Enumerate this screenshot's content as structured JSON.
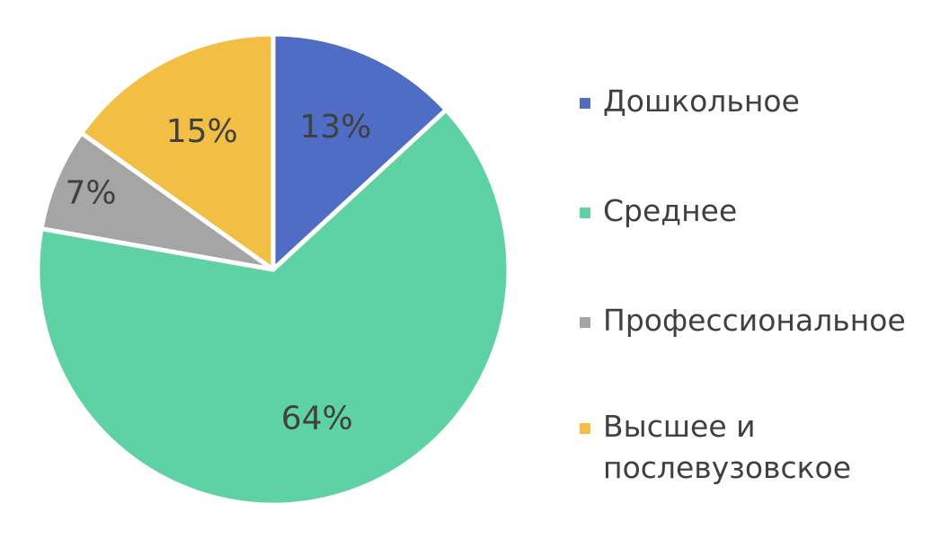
{
  "chart_data": {
    "type": "pie",
    "title": "",
    "legend_position": "right",
    "categories": [
      "Дошкольное",
      "Среднее",
      "Профессиональное",
      "Высшее и послевузовское"
    ],
    "values": [
      13,
      64,
      7,
      15
    ],
    "data_labels": [
      "13%",
      "64%",
      "7%",
      "15%"
    ],
    "colors": [
      "#4F6DC4",
      "#5FD2A3",
      "#A5A5A5",
      "#F2BE44"
    ],
    "legend_entries": [
      "Дошкольное",
      "Среднее",
      "Профессиональное",
      "Высшее и послевузовское"
    ]
  }
}
